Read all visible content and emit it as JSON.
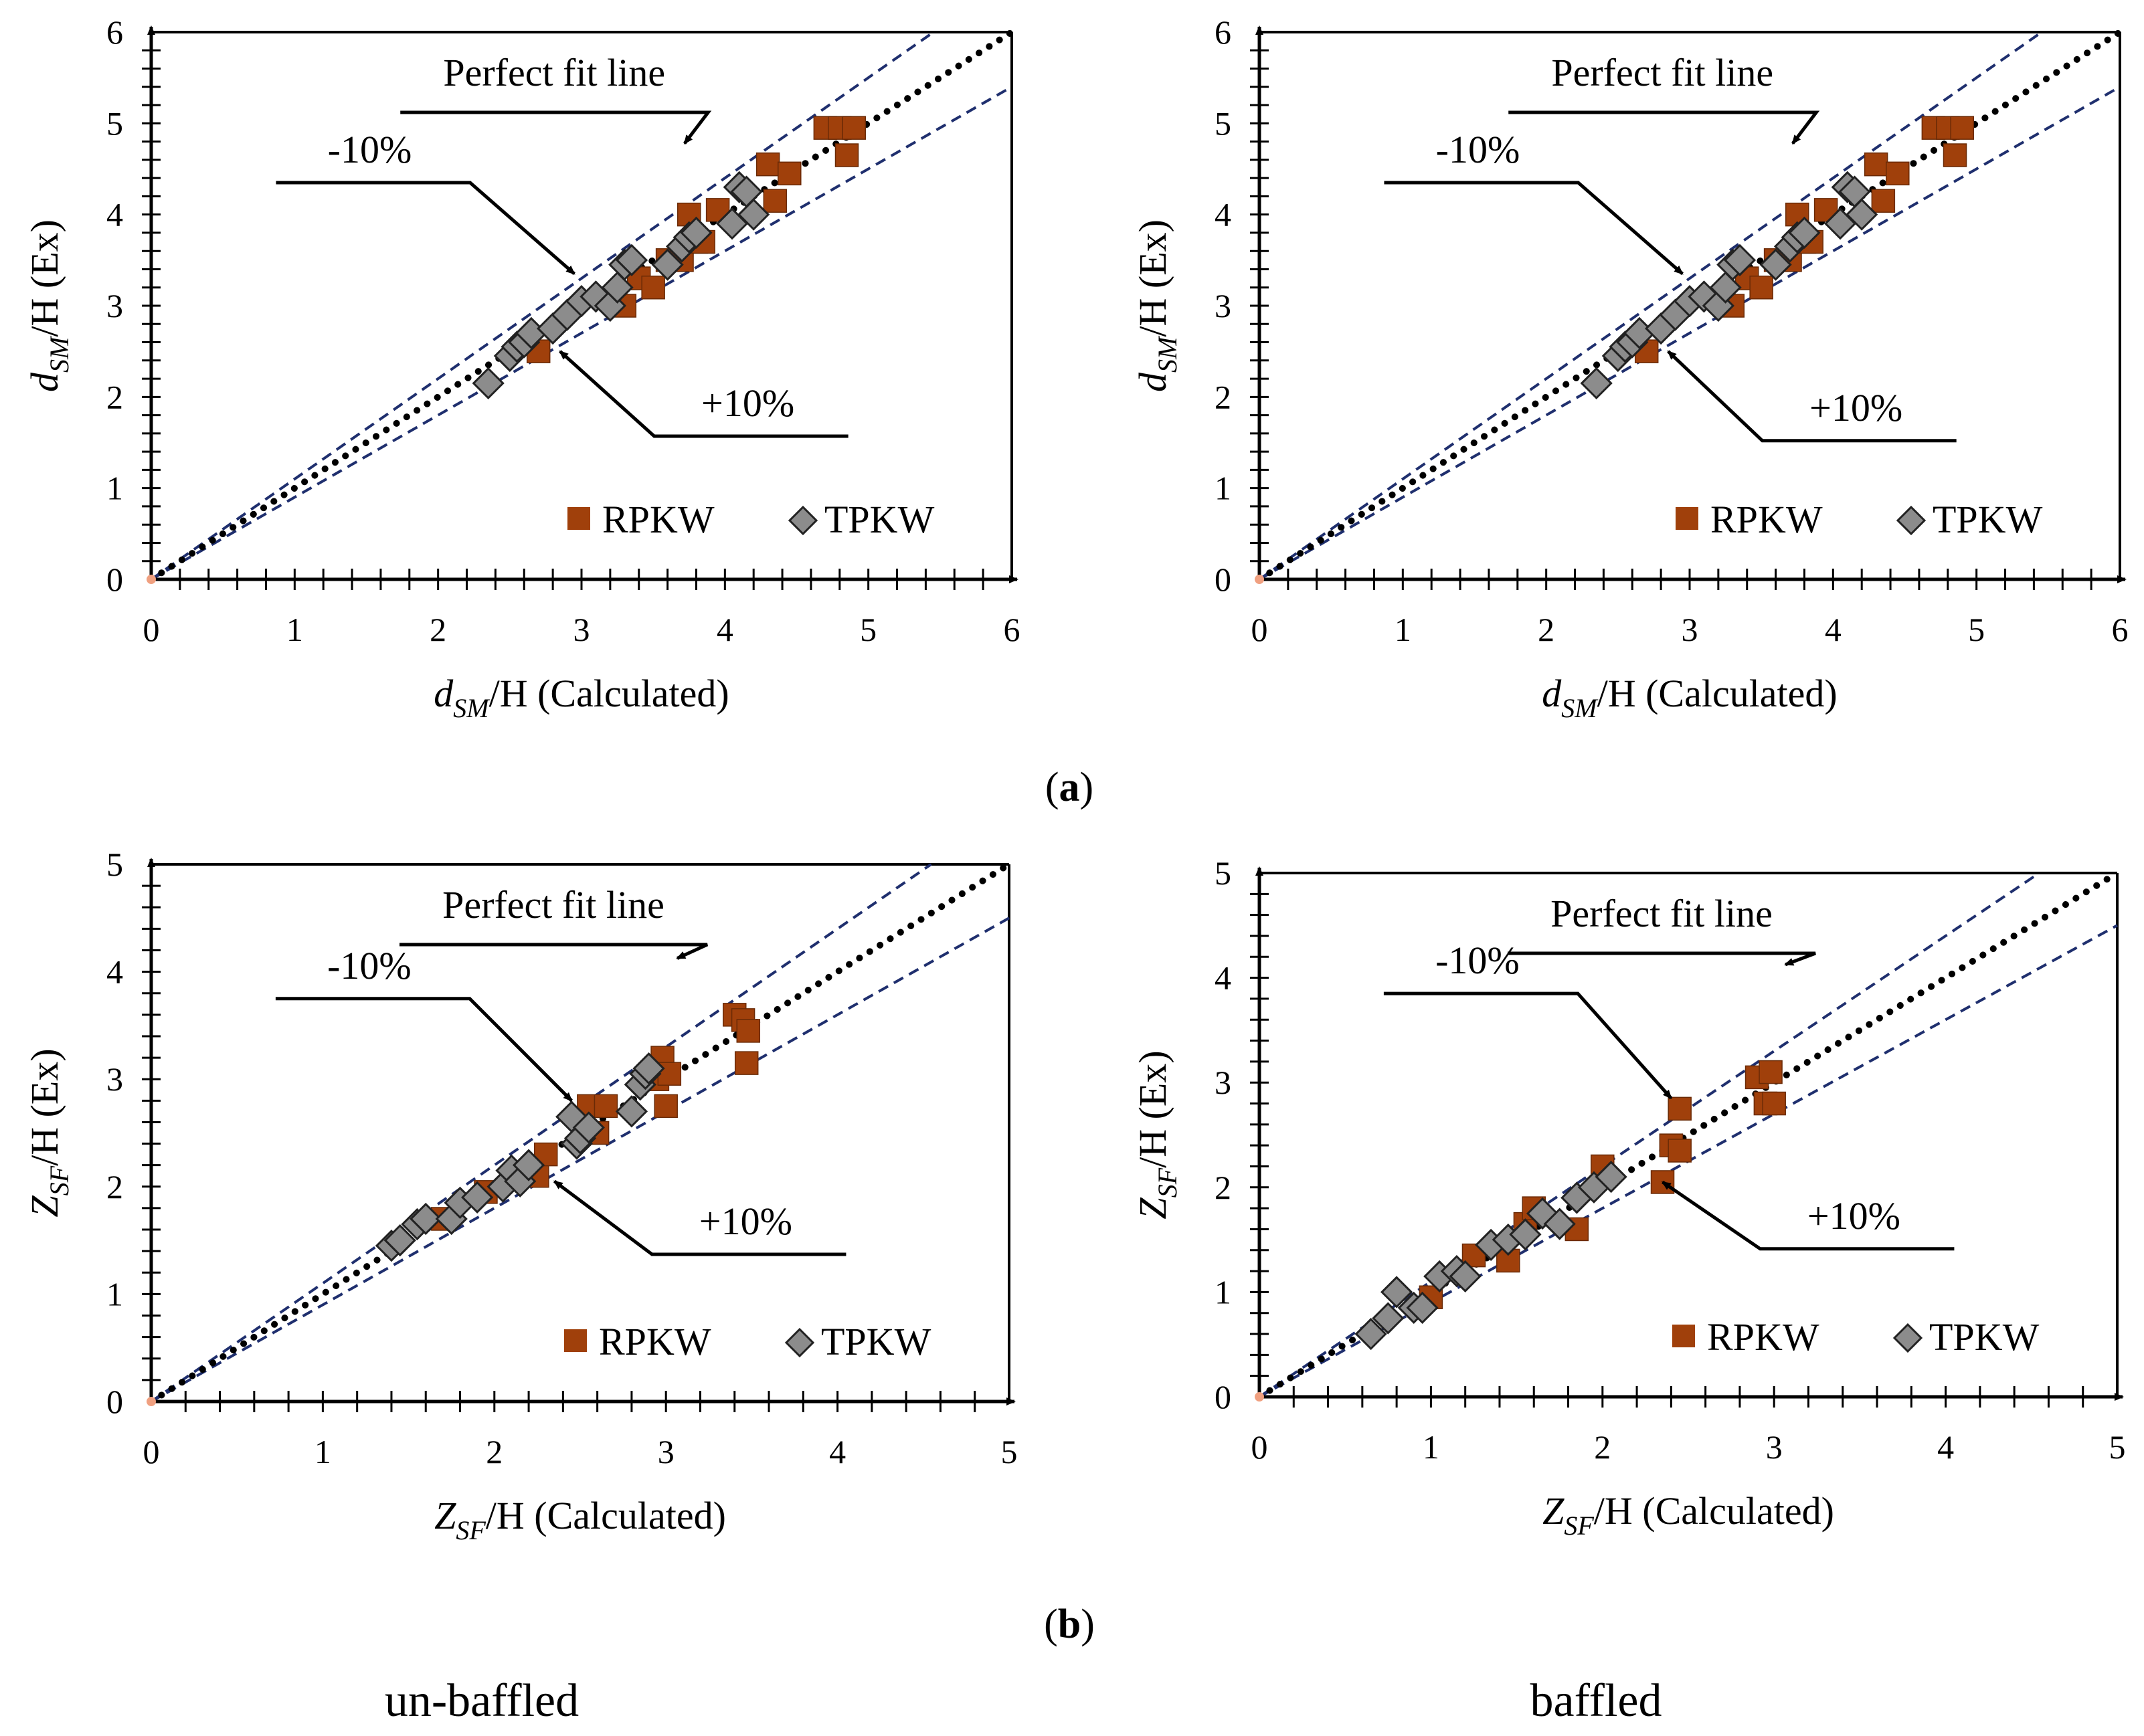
{
  "panel_labels": {
    "a": "a",
    "b": "b"
  },
  "captions": {
    "left": "un-baffled",
    "right": "baffled"
  },
  "annotations": {
    "perfect": "Perfect fit line",
    "minus": "-10%",
    "plus": "+10%"
  },
  "legend": {
    "rpkw": "RPKW",
    "tpkw": "TPKW"
  },
  "colors": {
    "rpkw": "#A0400B",
    "tpkw": "#8C8C8C",
    "band": "#1F2F6E",
    "perfect": "#000000"
  },
  "chart_data": [
    {
      "id": "dsm-unbaffled",
      "type": "scatter",
      "xlabel": {
        "var": "d",
        "sub": "SM",
        "rest": "/H (Calculated)"
      },
      "ylabel": {
        "var": "d",
        "sub": "SM",
        "rest": "/H (Ex)"
      },
      "xlim": [
        0,
        6
      ],
      "ylim": [
        0,
        6
      ],
      "xticks": [
        "0",
        "1",
        "2",
        "3",
        "4",
        "5",
        "6"
      ],
      "yticks": [
        "0",
        "1",
        "2",
        "3",
        "4",
        "5",
        "6"
      ],
      "series": [
        {
          "name": "RPKW",
          "points": [
            [
              2.7,
              2.5
            ],
            [
              3.3,
              3.0
            ],
            [
              3.4,
              3.3
            ],
            [
              3.5,
              3.2
            ],
            [
              3.6,
              3.5
            ],
            [
              3.7,
              3.5
            ],
            [
              3.75,
              4.0
            ],
            [
              3.8,
              3.7
            ],
            [
              3.85,
              3.7
            ],
            [
              3.95,
              4.05
            ],
            [
              4.3,
              4.55
            ],
            [
              4.35,
              4.15
            ],
            [
              4.45,
              4.45
            ],
            [
              4.7,
              4.95
            ],
            [
              4.8,
              4.95
            ],
            [
              4.85,
              4.65
            ],
            [
              4.9,
              4.95
            ]
          ]
        },
        {
          "name": "TPKW",
          "points": [
            [
              2.35,
              2.15
            ],
            [
              2.5,
              2.45
            ],
            [
              2.55,
              2.55
            ],
            [
              2.6,
              2.6
            ],
            [
              2.65,
              2.7
            ],
            [
              2.8,
              2.75
            ],
            [
              2.9,
              2.9
            ],
            [
              3.0,
              3.05
            ],
            [
              3.1,
              3.1
            ],
            [
              3.2,
              3.0
            ],
            [
              3.25,
              3.2
            ],
            [
              3.3,
              3.45
            ],
            [
              3.35,
              3.5
            ],
            [
              3.6,
              3.45
            ],
            [
              3.7,
              3.65
            ],
            [
              3.75,
              3.75
            ],
            [
              3.8,
              3.8
            ],
            [
              4.05,
              3.9
            ],
            [
              4.1,
              4.3
            ],
            [
              4.15,
              4.25
            ],
            [
              4.2,
              4.0
            ]
          ]
        }
      ],
      "ann": {
        "perfect": [
          3.7,
          4.75
        ],
        "minus": [
          1.5,
          4.35
        ],
        "plus": [
          4.2,
          1.9
        ]
      }
    },
    {
      "id": "dsm-baffled",
      "type": "scatter",
      "xlabel": {
        "var": "d",
        "sub": "SM",
        "rest": "/H (Calculated)"
      },
      "ylabel": {
        "var": "d",
        "sub": "SM",
        "rest": "/H (Ex)"
      },
      "xlim": [
        0,
        6
      ],
      "ylim": [
        0,
        6
      ],
      "xticks": [
        "0",
        "1",
        "2",
        "3",
        "4",
        "5",
        "6"
      ],
      "yticks": [
        "0",
        "1",
        "2",
        "3",
        "4",
        "5",
        "6"
      ],
      "series": [
        {
          "name": "RPKW",
          "points": [
            [
              2.7,
              2.5
            ],
            [
              3.3,
              3.0
            ],
            [
              3.4,
              3.3
            ],
            [
              3.5,
              3.2
            ],
            [
              3.6,
              3.5
            ],
            [
              3.7,
              3.5
            ],
            [
              3.75,
              4.0
            ],
            [
              3.8,
              3.7
            ],
            [
              3.85,
              3.7
            ],
            [
              3.95,
              4.05
            ],
            [
              4.3,
              4.55
            ],
            [
              4.35,
              4.15
            ],
            [
              4.45,
              4.45
            ],
            [
              4.7,
              4.95
            ],
            [
              4.8,
              4.95
            ],
            [
              4.85,
              4.65
            ],
            [
              4.9,
              4.95
            ]
          ]
        },
        {
          "name": "TPKW",
          "points": [
            [
              2.35,
              2.15
            ],
            [
              2.5,
              2.45
            ],
            [
              2.55,
              2.55
            ],
            [
              2.6,
              2.6
            ],
            [
              2.65,
              2.7
            ],
            [
              2.8,
              2.75
            ],
            [
              2.9,
              2.9
            ],
            [
              3.0,
              3.05
            ],
            [
              3.1,
              3.1
            ],
            [
              3.2,
              3.0
            ],
            [
              3.25,
              3.2
            ],
            [
              3.3,
              3.45
            ],
            [
              3.35,
              3.5
            ],
            [
              3.6,
              3.45
            ],
            [
              3.7,
              3.65
            ],
            [
              3.75,
              3.75
            ],
            [
              3.8,
              3.8
            ],
            [
              4.05,
              3.9
            ],
            [
              4.1,
              4.3
            ],
            [
              4.15,
              4.25
            ],
            [
              4.2,
              4.0
            ]
          ]
        }
      ],
      "ann": {
        "perfect": [
          3.7,
          4.75
        ],
        "minus": [
          1.5,
          4.35
        ],
        "plus": [
          4.2,
          1.85
        ]
      }
    },
    {
      "id": "zsf-unbaffled",
      "type": "scatter",
      "xlabel": {
        "var": "Z",
        "sub": "SF",
        "rest": "/H (Calculated)"
      },
      "ylabel": {
        "var": "Z",
        "sub": "SF",
        "rest": "/H (Ex)"
      },
      "xlim": [
        0,
        5
      ],
      "ylim": [
        0,
        5
      ],
      "xticks": [
        "0",
        "1",
        "2",
        "3",
        "4",
        "5"
      ],
      "yticks": [
        "0",
        "1",
        "2",
        "3",
        "4",
        "5"
      ],
      "series": [
        {
          "name": "RPKW",
          "points": [
            [
              1.7,
              1.7
            ],
            [
              1.95,
              1.95
            ],
            [
              2.25,
              2.1
            ],
            [
              2.3,
              2.3
            ],
            [
              2.55,
              2.75
            ],
            [
              2.6,
              2.5
            ],
            [
              2.65,
              2.75
            ],
            [
              2.95,
              3.0
            ],
            [
              2.98,
              3.2
            ],
            [
              3.0,
              2.75
            ],
            [
              3.02,
              3.05
            ],
            [
              3.4,
              3.6
            ],
            [
              3.45,
              3.55
            ],
            [
              3.47,
              3.15
            ],
            [
              3.48,
              3.45
            ]
          ]
        },
        {
          "name": "TPKW",
          "points": [
            [
              1.4,
              1.45
            ],
            [
              1.45,
              1.5
            ],
            [
              1.55,
              1.65
            ],
            [
              1.6,
              1.7
            ],
            [
              1.75,
              1.7
            ],
            [
              1.8,
              1.85
            ],
            [
              1.9,
              1.9
            ],
            [
              2.05,
              2.0
            ],
            [
              2.1,
              2.15
            ],
            [
              2.15,
              2.05
            ],
            [
              2.2,
              2.2
            ],
            [
              2.45,
              2.65
            ],
            [
              2.48,
              2.4
            ],
            [
              2.5,
              2.45
            ],
            [
              2.55,
              2.55
            ],
            [
              2.8,
              2.7
            ],
            [
              2.85,
              2.95
            ],
            [
              2.88,
              3.05
            ],
            [
              2.9,
              3.1
            ]
          ]
        }
      ],
      "ann": {
        "perfect": [
          3.05,
          4.1
        ],
        "minus": [
          1.3,
          3.75
        ],
        "plus": [
          3.5,
          1.65
        ]
      }
    },
    {
      "id": "zsf-baffled",
      "type": "scatter",
      "xlabel": {
        "var": "Z",
        "sub": "SF",
        "rest": "/H (Calculated)"
      },
      "ylabel": {
        "var": "Z",
        "sub": "SF",
        "rest": "/H (Ex)"
      },
      "xlim": [
        0,
        5
      ],
      "ylim": [
        0,
        5
      ],
      "xticks": [
        "0",
        "1",
        "2",
        "3",
        "4",
        "5"
      ],
      "yticks": [
        "0",
        "1",
        "2",
        "3",
        "4",
        "5"
      ],
      "series": [
        {
          "name": "RPKW",
          "points": [
            [
              1.0,
              0.95
            ],
            [
              1.25,
              1.35
            ],
            [
              1.45,
              1.3
            ],
            [
              1.55,
              1.65
            ],
            [
              1.6,
              1.8
            ],
            [
              1.85,
              1.6
            ],
            [
              2.0,
              2.2
            ],
            [
              2.35,
              2.05
            ],
            [
              2.4,
              2.4
            ],
            [
              2.45,
              2.35
            ],
            [
              2.45,
              2.75
            ],
            [
              2.9,
              3.05
            ],
            [
              2.95,
              2.8
            ],
            [
              2.98,
              3.1
            ],
            [
              3.0,
              2.8
            ]
          ]
        },
        {
          "name": "TPKW",
          "points": [
            [
              0.65,
              0.6
            ],
            [
              0.75,
              0.75
            ],
            [
              0.8,
              1.0
            ],
            [
              0.9,
              0.85
            ],
            [
              0.95,
              0.85
            ],
            [
              1.05,
              1.15
            ],
            [
              1.15,
              1.2
            ],
            [
              1.2,
              1.15
            ],
            [
              1.35,
              1.45
            ],
            [
              1.45,
              1.5
            ],
            [
              1.55,
              1.55
            ],
            [
              1.65,
              1.75
            ],
            [
              1.75,
              1.65
            ],
            [
              1.85,
              1.9
            ],
            [
              1.95,
              2.0
            ],
            [
              2.05,
              2.1
            ]
          ]
        }
      ],
      "ann": {
        "perfect": [
          3.05,
          4.1
        ],
        "minus": [
          1.3,
          3.85
        ],
        "plus": [
          3.5,
          1.7
        ]
      }
    }
  ]
}
